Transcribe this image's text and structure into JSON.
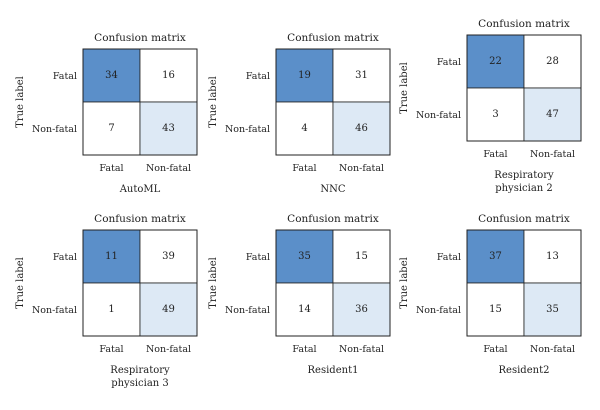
{
  "chart_data": [
    {
      "type": "heatmap",
      "title": "Confusion matrix",
      "ylabel": "True label",
      "x_categories": [
        "Fatal",
        "Non-fatal"
      ],
      "y_categories": [
        "Fatal",
        "Non-fatal"
      ],
      "matrix": [
        [
          34,
          16
        ],
        [
          7,
          43
        ]
      ],
      "caption": [
        "AutoML"
      ]
    },
    {
      "type": "heatmap",
      "title": "Confusion matrix",
      "ylabel": "True label",
      "x_categories": [
        "Fatal",
        "Non-fatal"
      ],
      "y_categories": [
        "Fatal",
        "Non-fatal"
      ],
      "matrix": [
        [
          19,
          31
        ],
        [
          4,
          46
        ]
      ],
      "caption": [
        "NNC"
      ]
    },
    {
      "type": "heatmap",
      "title": "Confusion matrix",
      "ylabel": "True label",
      "x_categories": [
        "Fatal",
        "Non-fatal"
      ],
      "y_categories": [
        "Fatal",
        "Non-fatal"
      ],
      "matrix": [
        [
          22,
          28
        ],
        [
          3,
          47
        ]
      ],
      "caption": [
        "Respiratory",
        "physician 2"
      ]
    },
    {
      "type": "heatmap",
      "title": "Confusion matrix",
      "ylabel": "True label",
      "x_categories": [
        "Fatal",
        "Non-fatal"
      ],
      "y_categories": [
        "Fatal",
        "Non-fatal"
      ],
      "matrix": [
        [
          11,
          39
        ],
        [
          1,
          49
        ]
      ],
      "caption": [
        "Respiratory",
        "physician 3"
      ]
    },
    {
      "type": "heatmap",
      "title": "Confusion matrix",
      "ylabel": "True label",
      "x_categories": [
        "Fatal",
        "Non-fatal"
      ],
      "y_categories": [
        "Fatal",
        "Non-fatal"
      ],
      "matrix": [
        [
          35,
          15
        ],
        [
          14,
          36
        ]
      ],
      "caption": [
        "Resident1"
      ]
    },
    {
      "type": "heatmap",
      "title": "Confusion matrix",
      "ylabel": "True label",
      "x_categories": [
        "Fatal",
        "Non-fatal"
      ],
      "y_categories": [
        "Fatal",
        "Non-fatal"
      ],
      "matrix": [
        [
          37,
          13
        ],
        [
          15,
          35
        ]
      ],
      "caption": [
        "Resident2"
      ]
    }
  ],
  "colors": {
    "true_positive": "#5b8fc9",
    "true_negative": "#dde9f5",
    "off_diagonal": "#ffffff",
    "border": "#222222"
  }
}
